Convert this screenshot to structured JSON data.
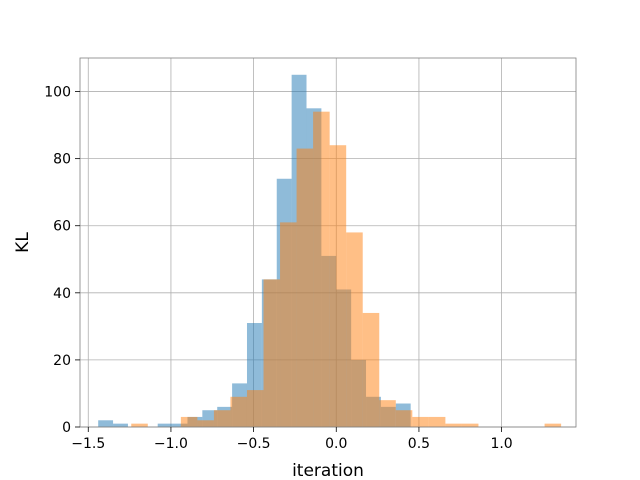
{
  "chart_data": {
    "type": "bar",
    "subtype": "overlapping-histogram",
    "title": "",
    "xlabel": "iteration",
    "ylabel": "KL",
    "xlim": [
      -1.55,
      1.45
    ],
    "ylim": [
      0,
      110
    ],
    "xticks": [
      -1.5,
      -1.0,
      -0.5,
      0.0,
      0.5,
      1.0
    ],
    "xtick_labels": [
      "−1.5",
      "−1.0",
      "−0.5",
      "0.0",
      "0.5",
      "1.0"
    ],
    "yticks": [
      0,
      20,
      40,
      60,
      80,
      100
    ],
    "ytick_labels": [
      "0",
      "20",
      "40",
      "60",
      "80",
      "100"
    ],
    "grid": true,
    "legend": "none",
    "series": [
      {
        "color": "#1f77b4",
        "alpha": 0.5,
        "bin_edges": [
          -1.44,
          -1.35,
          -1.26,
          -1.17,
          -1.08,
          -0.99,
          -0.9,
          -0.81,
          -0.72,
          -0.63,
          -0.54,
          -0.45,
          -0.36,
          -0.27,
          -0.18,
          -0.09,
          0.0,
          0.09,
          0.18,
          0.27,
          0.36,
          0.45
        ],
        "counts": [
          2,
          1,
          0,
          0,
          1,
          1,
          3,
          5,
          6,
          13,
          31,
          44,
          74,
          105,
          95,
          51,
          41,
          20,
          9,
          6,
          7
        ]
      },
      {
        "color": "#ff7f0e",
        "alpha": 0.5,
        "bin_edges": [
          -1.24,
          -1.14,
          -1.04,
          -0.94,
          -0.84,
          -0.74,
          -0.64,
          -0.54,
          -0.44,
          -0.34,
          -0.24,
          -0.14,
          -0.04,
          0.06,
          0.16,
          0.26,
          0.36,
          0.46,
          0.56,
          0.66,
          0.76,
          0.86,
          0.96,
          1.06,
          1.16,
          1.26,
          1.36
        ],
        "counts": [
          1,
          0,
          0,
          3,
          2,
          5,
          9,
          11,
          44,
          61,
          83,
          94,
          84,
          58,
          34,
          8,
          5,
          3,
          3,
          1,
          1,
          0,
          0,
          0,
          0,
          1
        ]
      }
    ]
  }
}
